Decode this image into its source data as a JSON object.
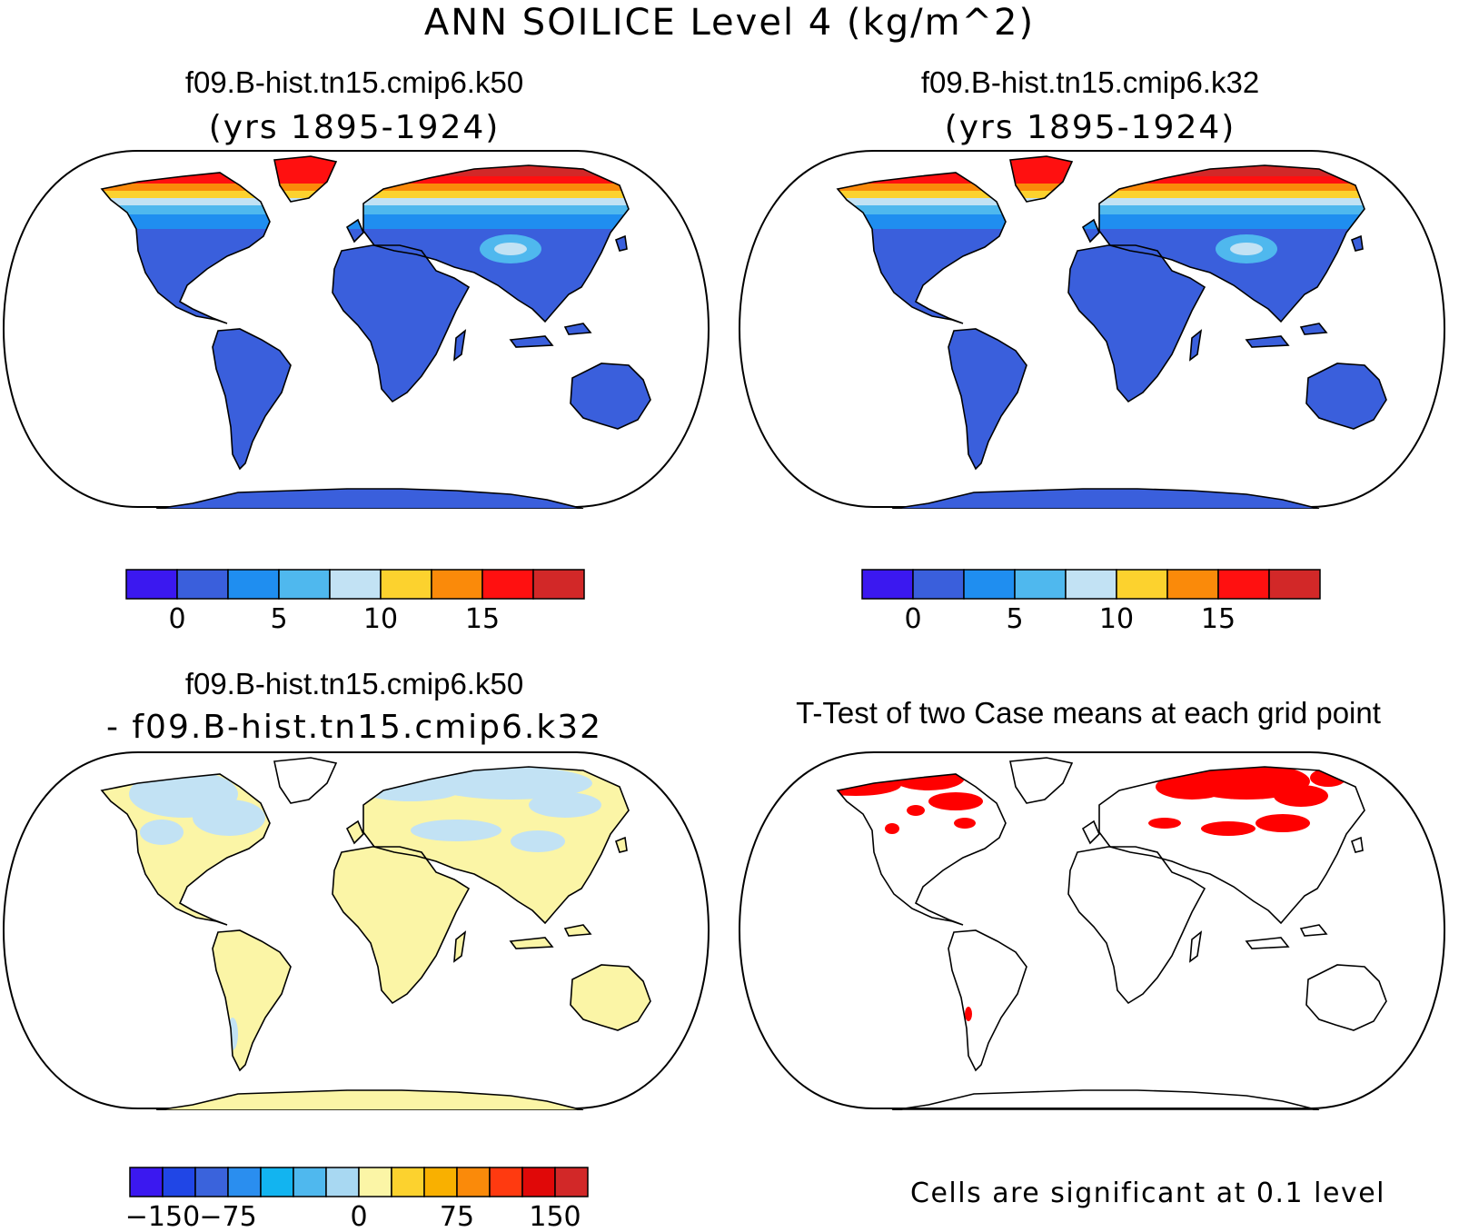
{
  "figure": {
    "title": "ANN SOILICE Level 4 (kg/m^2)"
  },
  "panels": [
    {
      "id": "case1",
      "title": "f09.B-hist.tn15.cmip6.k50",
      "subtitle": "(yrs 1895-1924)",
      "fill_style": "absolute"
    },
    {
      "id": "case2",
      "title": "f09.B-hist.tn15.cmip6.k32",
      "subtitle": "(yrs 1895-1924)",
      "fill_style": "absolute"
    },
    {
      "id": "difference",
      "title": "f09.B-hist.tn15.cmip6.k50",
      "subtitle": "- f09.B-hist.tn15.cmip6.k32",
      "fill_style": "difference"
    },
    {
      "id": "ttest",
      "title": "T-Test of two Case means at each grid point",
      "subtitle": "",
      "fill_style": "ttest",
      "note": "Cells are significant at 0.1 level"
    }
  ],
  "colorbars": {
    "absolute": {
      "colors": [
        "#3b18f0",
        "#3a5fdc",
        "#1f8ef0",
        "#4fb8ee",
        "#c2e2f4",
        "#fcd22e",
        "#fa8a0a",
        "#ff1010",
        "#d22828"
      ],
      "tick_labels": [
        "0",
        "5",
        "10",
        "15"
      ],
      "tick_after_box": [
        1,
        3,
        5,
        7
      ]
    },
    "difference": {
      "colors": [
        "#3b18f0",
        "#2046e6",
        "#3a63dc",
        "#2a8eef",
        "#12b4f0",
        "#4fb8ee",
        "#a8d8f2",
        "#fbf5a6",
        "#fcd22e",
        "#f9b000",
        "#fa8a0a",
        "#ff3a10",
        "#e00808",
        "#d22828"
      ],
      "tick_labels": [
        "−150",
        "−75",
        "0",
        "75",
        "150"
      ],
      "tick_after_box": [
        1,
        3,
        7,
        10,
        13
      ]
    }
  },
  "legend_colors": {
    "land_base": "#3a5fdc",
    "diff_land": "#fbf5a6",
    "diff_cool": "#c2e2f4",
    "significant": "#ff0000",
    "coast": "#000000"
  }
}
